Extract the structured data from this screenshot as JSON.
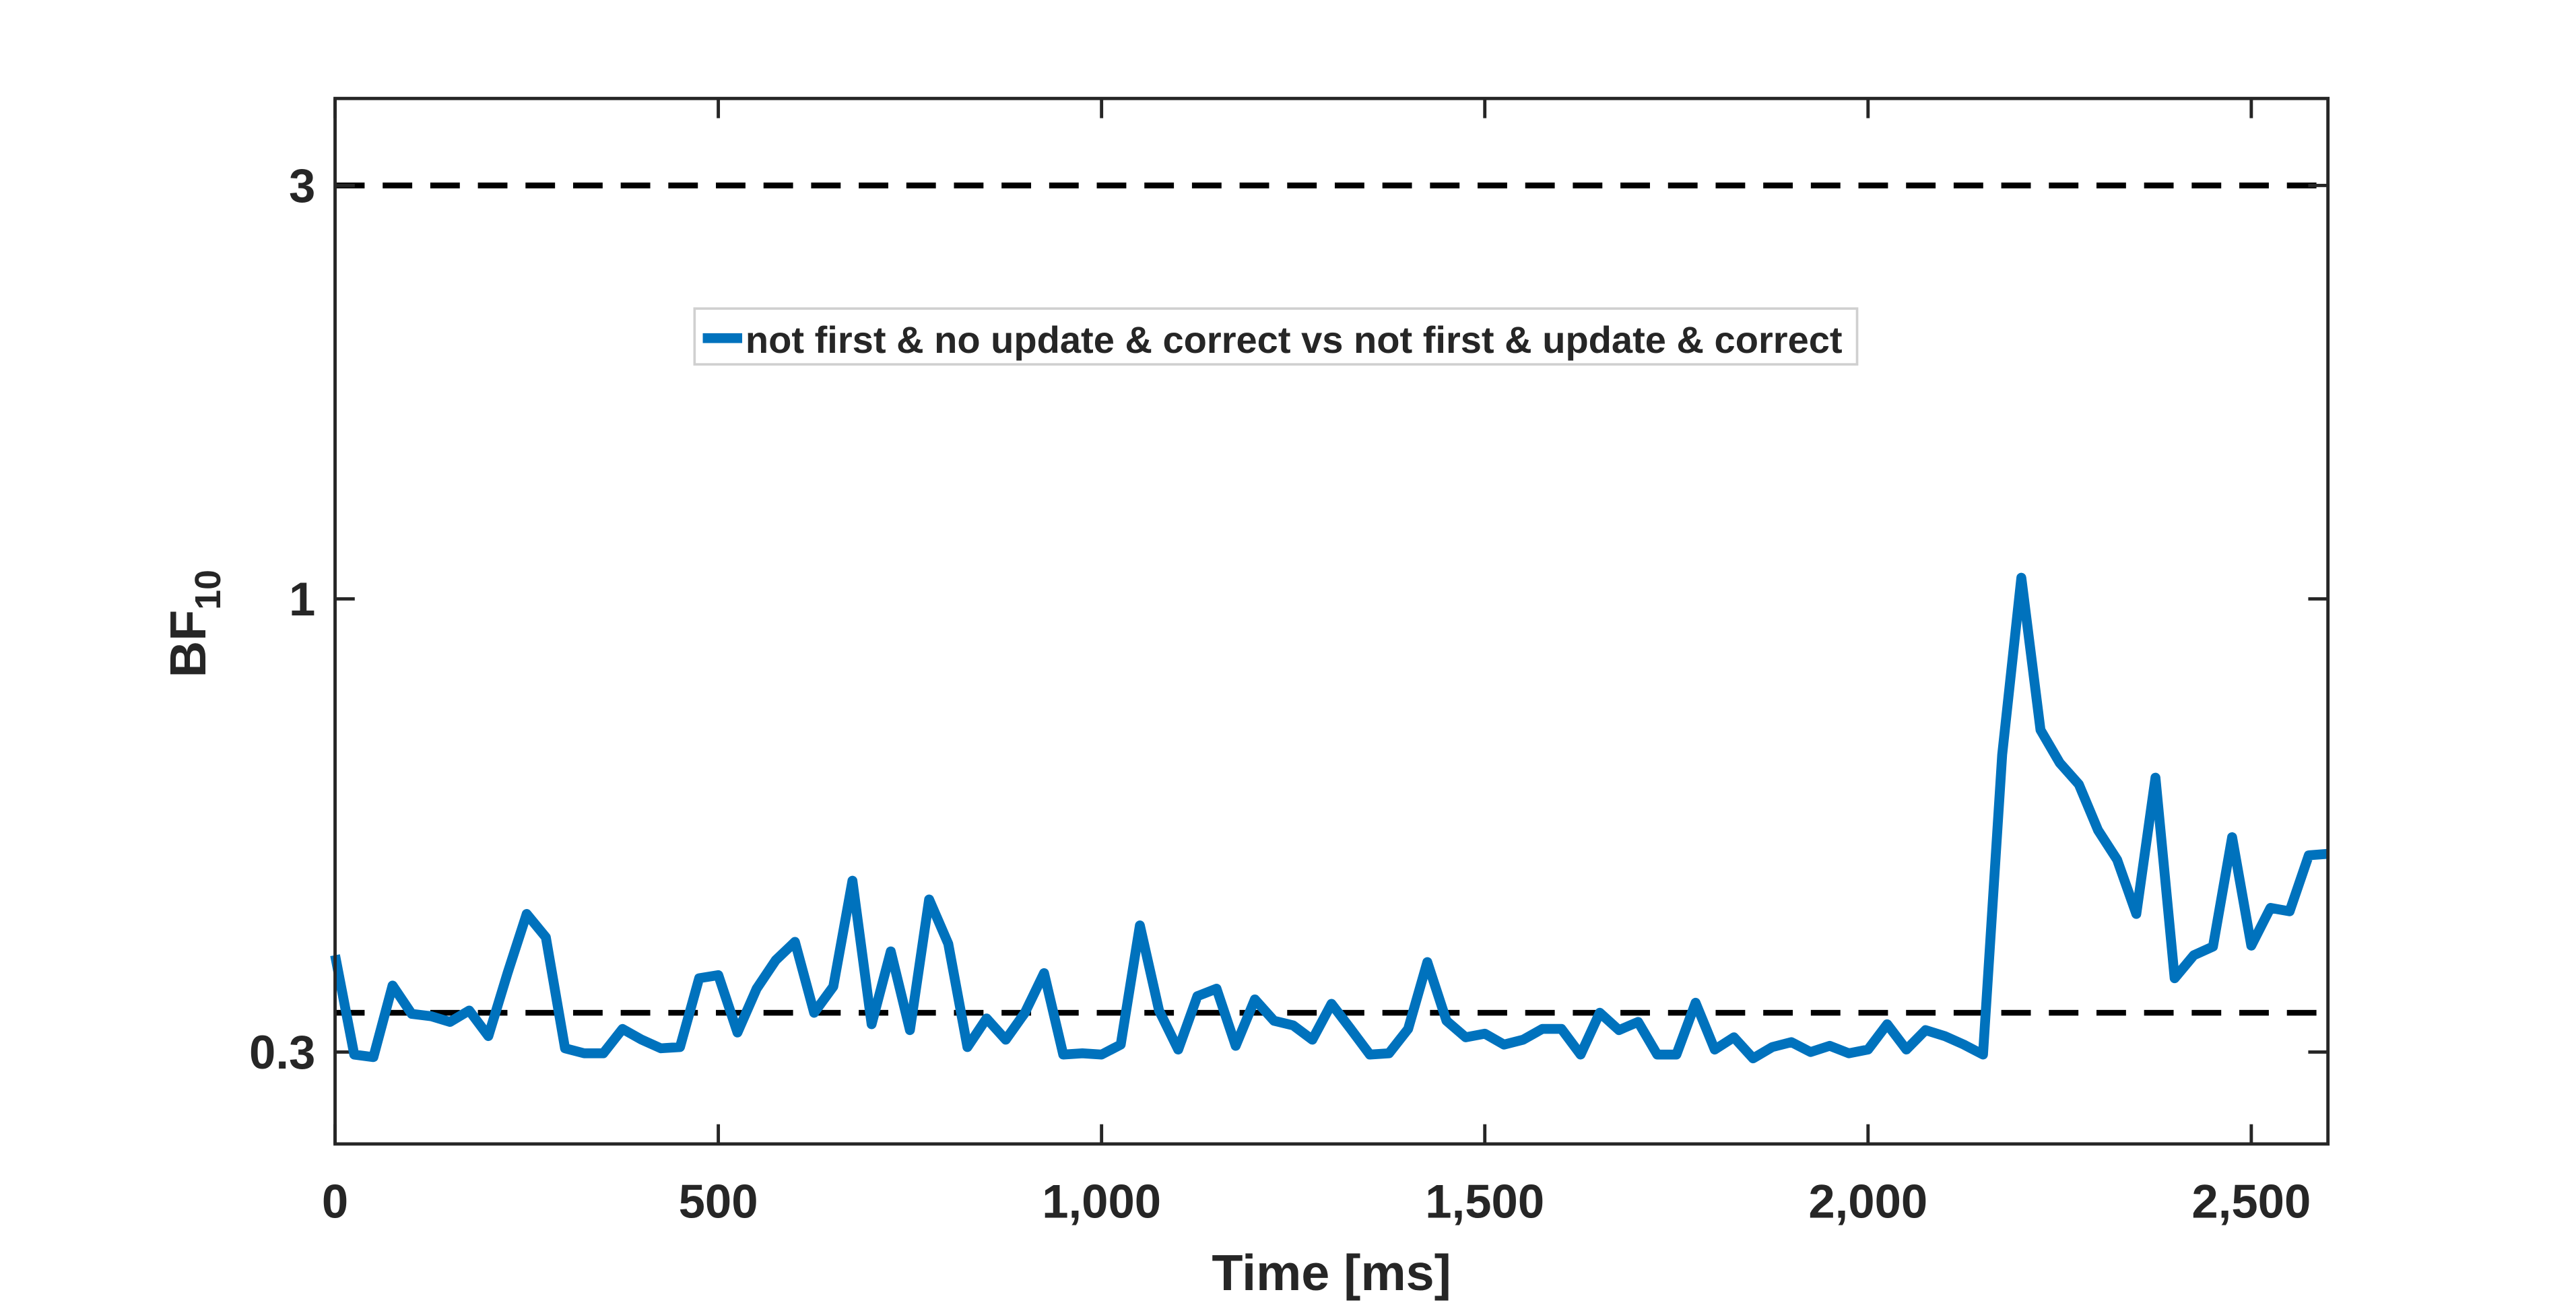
{
  "chart_data": {
    "type": "line",
    "xlabel": "Time [ms]",
    "ylabel": "BF",
    "ylabel_subscript": "10",
    "x": [
      0,
      25,
      50,
      75,
      100,
      125,
      150,
      175,
      200,
      225,
      250,
      275,
      300,
      325,
      350,
      375,
      400,
      425,
      450,
      475,
      500,
      525,
      550,
      575,
      600,
      625,
      650,
      675,
      700,
      725,
      750,
      775,
      800,
      825,
      850,
      875,
      900,
      925,
      950,
      975,
      1000,
      1025,
      1050,
      1075,
      1100,
      1125,
      1150,
      1175,
      1200,
      1225,
      1250,
      1275,
      1300,
      1325,
      1350,
      1375,
      1400,
      1425,
      1450,
      1475,
      1500,
      1525,
      1550,
      1575,
      1600,
      1625,
      1650,
      1675,
      1700,
      1725,
      1750,
      1775,
      1800,
      1825,
      1850,
      1875,
      1900,
      1925,
      1950,
      1975,
      2000,
      2025,
      2050,
      2075,
      2100,
      2125,
      2150,
      2175,
      2200,
      2225,
      2250,
      2275,
      2300,
      2325,
      2350,
      2375,
      2400,
      2425,
      2450,
      2475,
      2500,
      2525,
      2550,
      2575,
      2600
    ],
    "series": [
      {
        "name": "not first & no update & correct vs not first & update & correct",
        "color": "#0072bd",
        "values": [
          0.388,
          0.298,
          0.296,
          0.358,
          0.332,
          0.33,
          0.325,
          0.335,
          0.313,
          0.37,
          0.433,
          0.407,
          0.303,
          0.299,
          0.299,
          0.319,
          0.31,
          0.303,
          0.304,
          0.365,
          0.368,
          0.316,
          0.355,
          0.383,
          0.402,
          0.333,
          0.357,
          0.473,
          0.323,
          0.392,
          0.318,
          0.45,
          0.4,
          0.304,
          0.328,
          0.31,
          0.333,
          0.37,
          0.298,
          0.299,
          0.298,
          0.306,
          0.42,
          0.335,
          0.302,
          0.348,
          0.355,
          0.305,
          0.345,
          0.326,
          0.322,
          0.31,
          0.341,
          0.319,
          0.298,
          0.299,
          0.319,
          0.381,
          0.326,
          0.312,
          0.315,
          0.306,
          0.31,
          0.319,
          0.319,
          0.298,
          0.333,
          0.318,
          0.325,
          0.298,
          0.298,
          0.342,
          0.302,
          0.312,
          0.295,
          0.304,
          0.308,
          0.3,
          0.305,
          0.299,
          0.302,
          0.323,
          0.302,
          0.318,
          0.313,
          0.306,
          0.298,
          0.661,
          1.058,
          0.706,
          0.647,
          0.611,
          0.541,
          0.5,
          0.433,
          0.622,
          0.365,
          0.388,
          0.397,
          0.531,
          0.398,
          0.44,
          0.436,
          0.506,
          0.508
        ]
      }
    ],
    "reference_lines": [
      3,
      0.333
    ],
    "xlim": [
      0,
      2600
    ],
    "xticks": [
      0,
      500,
      {
        "value": 1000,
        "label": "1,000"
      },
      {
        "value": 1500,
        "label": "1,500"
      },
      {
        "value": 2000,
        "label": "2,000"
      },
      {
        "value": 2500,
        "label": "2,500"
      }
    ],
    "ylim": [
      0.235,
      3.78
    ],
    "yticks": [
      0.3,
      1,
      3
    ],
    "log_y": true,
    "legend_position": "north"
  }
}
